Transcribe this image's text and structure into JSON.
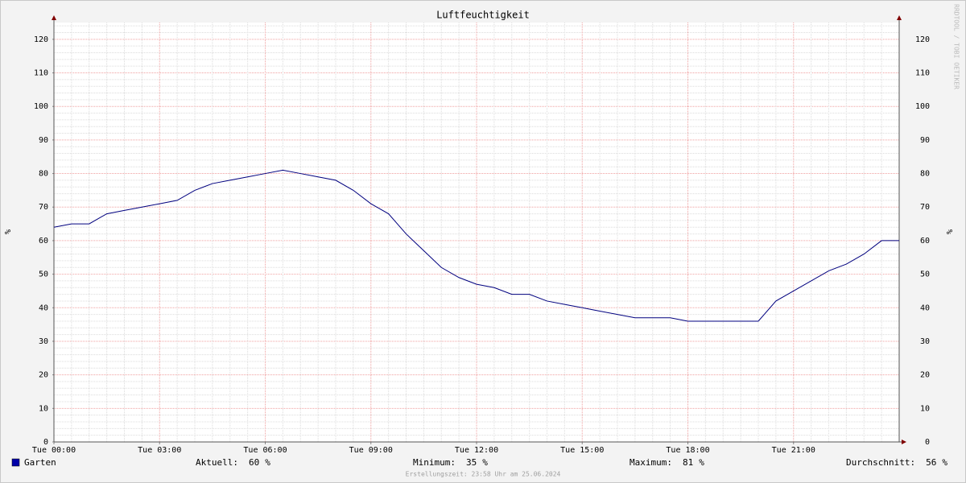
{
  "chart_data": {
    "type": "line",
    "title": "Luftfeuchtigkeit",
    "ylabel": "%",
    "watermark": "RRDTOOL / TOBI OETIKER",
    "footer": "Erstellungszeit: 23:58 Uhr am 25.06.2024",
    "x": [
      0,
      0.5,
      1,
      1.5,
      2,
      2.5,
      3,
      3.5,
      4,
      4.5,
      5,
      5.5,
      6,
      6.5,
      7,
      7.5,
      8,
      8.5,
      9,
      9.5,
      10,
      10.5,
      11,
      11.5,
      12,
      12.5,
      13,
      13.5,
      14,
      14.5,
      15,
      15.5,
      16,
      16.5,
      17,
      17.5,
      18,
      18.5,
      19,
      19.5,
      20,
      20.5,
      21,
      21.5,
      22,
      22.5,
      23,
      23.5,
      24
    ],
    "series": [
      {
        "name": "Garten",
        "color": "#00007f",
        "legend_color": "#0000a8",
        "values": [
          64,
          65,
          65,
          68,
          69,
          70,
          71,
          72,
          75,
          77,
          78,
          79,
          80,
          81,
          80,
          79,
          78,
          75,
          71,
          68,
          62,
          57,
          52,
          49,
          47,
          46,
          44,
          44,
          42,
          41,
          40,
          39,
          38,
          37,
          37,
          37,
          36,
          36,
          36,
          36,
          36,
          42,
          45,
          48,
          51,
          53,
          56,
          60,
          60
        ]
      }
    ],
    "stats": [
      {
        "label": "Aktuell:",
        "value": 60,
        "unit": "%"
      },
      {
        "label": "Minimum:",
        "value": 35,
        "unit": "%"
      },
      {
        "label": "Maximum:",
        "value": 81,
        "unit": "%"
      },
      {
        "label": "Durchschnitt:",
        "value": 56,
        "unit": "%"
      }
    ],
    "xlim": [
      0,
      24
    ],
    "xticks": [
      {
        "value": 0,
        "label": "Tue 00:00"
      },
      {
        "value": 3,
        "label": "Tue 03:00"
      },
      {
        "value": 6,
        "label": "Tue 06:00"
      },
      {
        "value": 9,
        "label": "Tue 09:00"
      },
      {
        "value": 12,
        "label": "Tue 12:00"
      },
      {
        "value": 15,
        "label": "Tue 15:00"
      },
      {
        "value": 18,
        "label": "Tue 18:00"
      },
      {
        "value": 21,
        "label": "Tue 21:00"
      }
    ],
    "ylim": [
      0,
      125
    ],
    "yticks": [
      0,
      10,
      20,
      30,
      40,
      50,
      60,
      70,
      80,
      90,
      100,
      110,
      120
    ],
    "grid": true
  }
}
